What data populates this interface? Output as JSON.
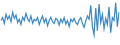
{
  "chart_data": {
    "type": "line",
    "color": "#3a87c8",
    "values": [
      55,
      62,
      48,
      70,
      58,
      66,
      52,
      75,
      60,
      68,
      50,
      58,
      45,
      63,
      55,
      72,
      60,
      52,
      66,
      48,
      58,
      54,
      62,
      45,
      57,
      66,
      50,
      60,
      42,
      55,
      63,
      52,
      48,
      60,
      56,
      44,
      58,
      50,
      62,
      46,
      55,
      40,
      58,
      52,
      60,
      50,
      45,
      56,
      62,
      48,
      38,
      54,
      66,
      58,
      92,
      40,
      20,
      85,
      30,
      95,
      50,
      70,
      35,
      60,
      45,
      88,
      25,
      62,
      55,
      98,
      40,
      75
    ],
    "ylim": [
      0,
      100
    ],
    "grid": false,
    "tick_labels": false
  }
}
